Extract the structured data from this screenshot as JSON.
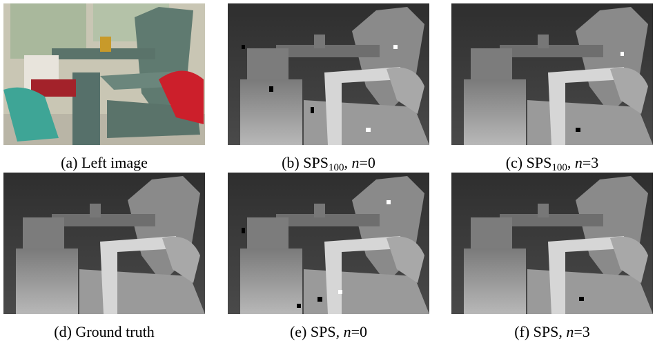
{
  "panels": [
    {
      "caption": [
        {
          "text": "(a) Left image"
        }
      ]
    },
    {
      "caption": [
        {
          "text": "(b) SPS"
        },
        {
          "text": "100",
          "style": "sub"
        },
        {
          "text": ", "
        },
        {
          "text": "n",
          "style": "italic"
        },
        {
          "text": "=0"
        }
      ]
    },
    {
      "caption": [
        {
          "text": "(c) SPS"
        },
        {
          "text": "100",
          "style": "sub"
        },
        {
          "text": ", "
        },
        {
          "text": "n",
          "style": "italic"
        },
        {
          "text": "=3"
        }
      ]
    },
    {
      "caption": [
        {
          "text": "(d) Ground truth"
        }
      ]
    },
    {
      "caption": [
        {
          "text": "(e) SPS, "
        },
        {
          "text": "n",
          "style": "italic"
        },
        {
          "text": "=0"
        }
      ]
    },
    {
      "caption": [
        {
          "text": "(f) SPS, "
        },
        {
          "text": "n",
          "style": "italic"
        },
        {
          "text": "=3"
        }
      ]
    }
  ]
}
